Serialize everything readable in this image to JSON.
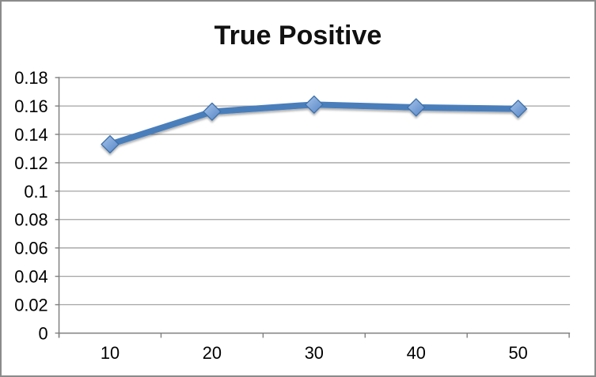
{
  "chart": {
    "title": "True Positive"
  },
  "chart_data": {
    "type": "line",
    "title": "True Positive",
    "categories": [
      "10",
      "20",
      "30",
      "40",
      "50"
    ],
    "values": [
      0.133,
      0.156,
      0.161,
      0.159,
      0.158
    ],
    "series": [
      {
        "name": "True Positive",
        "values": [
          0.133,
          0.156,
          0.161,
          0.159,
          0.158
        ]
      }
    ],
    "xlabel": "",
    "ylabel": "",
    "ylim": [
      0,
      0.18
    ],
    "ytick_step": 0.02,
    "ytick_labels": [
      "0",
      "0.02",
      "0.04",
      "0.06",
      "0.08",
      "0.1",
      "0.12",
      "0.14",
      "0.16",
      "0.18"
    ],
    "grid": true,
    "legend_position": "none",
    "marker_shape": "diamond",
    "colors": {
      "line": "#4A7EBB",
      "marker_fill_light": "#A6C4EA",
      "marker_fill_dark": "#5585C6",
      "marker_border": "#3E6FA8",
      "gridline": "#A3A3A3",
      "axis": "#7F7F7F",
      "text": "#000000",
      "chart_border": "#8B8B8B",
      "background": "#FFFFFF"
    }
  }
}
